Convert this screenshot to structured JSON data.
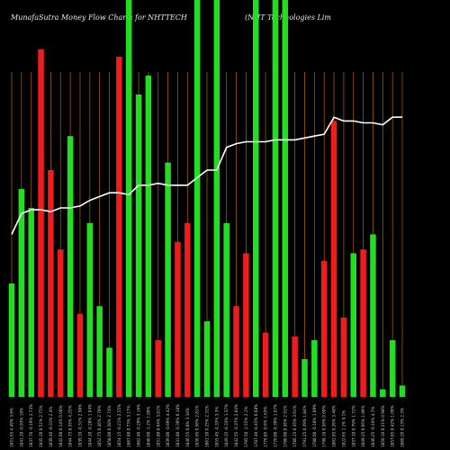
{
  "chart_data": {
    "type": "bar",
    "title": "MunafaSutra  Money Flow  Charts for NHTTECH",
    "subtitle": "(NHT Technologies Lim",
    "categories": [
      "1851.65 4.49% 3.8%",
      "1841.20 -0.93% 10%",
      "1837.70 -0.19% 2.73%",
      "1845.20 0.51% 2.75%",
      "1839.40 -0.31% 2.4%",
      "1842.00 0.14% 0.08%",
      "1844.75 0.35% 4.25%",
      "1839.10 -0.31% 2.98%",
      "1844.20 -0.28% 1.04%",
      "1852.75 0.46% 2.79%",
      "1858.00 0.28% 2.74%",
      "1854.15 -0.21% 2.55%",
      "1867.80 0.73% 3.17%",
      "1862.40 -0.29% 3.16%",
      "1840.00 -1.2% 1.09%",
      "1851.80 0.64% 3.81%",
      "1839.00 -0.69% 4.42%",
      "1831.80 -0.39% 0.18%",
      "1846.55 0.8% 3.34%",
      "1856.95 0.56% 2.81%",
      "1861.50 0.25% 2.31%",
      "1855.45 -0.33% 3.3%",
      "1849.35 -0.33% 1.37%",
      "1842.55 -0.37% 2.04%",
      "1795.50 -2.55% 2.1%",
      "1787.40 -0.45% 0.68%",
      "1776.85 -0.6% 1.63%",
      "1770.00 -0.39% 1.07%",
      "1780.00 0.56% 2.91%",
      "1786.15 0.35% 3.61%",
      "1791.25 0.29% 1.84%",
      "1788.00 -0.18% 1.09%",
      "1798.10 0.56% 0.69%",
      "1802.85 0.26% 3.48%",
      "1822.65 1.1% 0.1%",
      "1837.10 0.79% 1.72%",
      "1849.25 0.66% 1.99%",
      "1846.25 -0.16% 4.7%",
      "1850.10 0.21% 0.98%",
      "1857.85 0.42% 1.09%",
      "1860.20 0.13% 2.3%"
    ],
    "bar_values": [
      30,
      55,
      50,
      92,
      60,
      39,
      69,
      22,
      46,
      24,
      13,
      90,
      105,
      80,
      85,
      15,
      62,
      41,
      46,
      105,
      20,
      105,
      46,
      24,
      38,
      105,
      17,
      105,
      105,
      16,
      10,
      15,
      36,
      73,
      21,
      38,
      39,
      43,
      2,
      15,
      3
    ],
    "bar_colors": [
      "green",
      "green",
      "green",
      "red",
      "red",
      "red",
      "green",
      "red",
      "green",
      "green",
      "green",
      "red",
      "green",
      "green",
      "green",
      "red",
      "green",
      "red",
      "red",
      "green",
      "green",
      "green",
      "green",
      "red",
      "red",
      "green",
      "red",
      "green",
      "green",
      "red",
      "green",
      "green",
      "red",
      "red",
      "red",
      "green",
      "red",
      "green",
      "green",
      "green",
      "green"
    ],
    "line_values": [
      43,
      48.5,
      49.5,
      49.5,
      49,
      50,
      50,
      50.5,
      52,
      53,
      54,
      54,
      53.5,
      56,
      56,
      56.5,
      56,
      56,
      56,
      58,
      60,
      60,
      66,
      67,
      67.5,
      67.5,
      67.5,
      68,
      68,
      68,
      68.5,
      69,
      69.5,
      74,
      73,
      73,
      72.5,
      72.5,
      72,
      74,
      74
    ]
  }
}
